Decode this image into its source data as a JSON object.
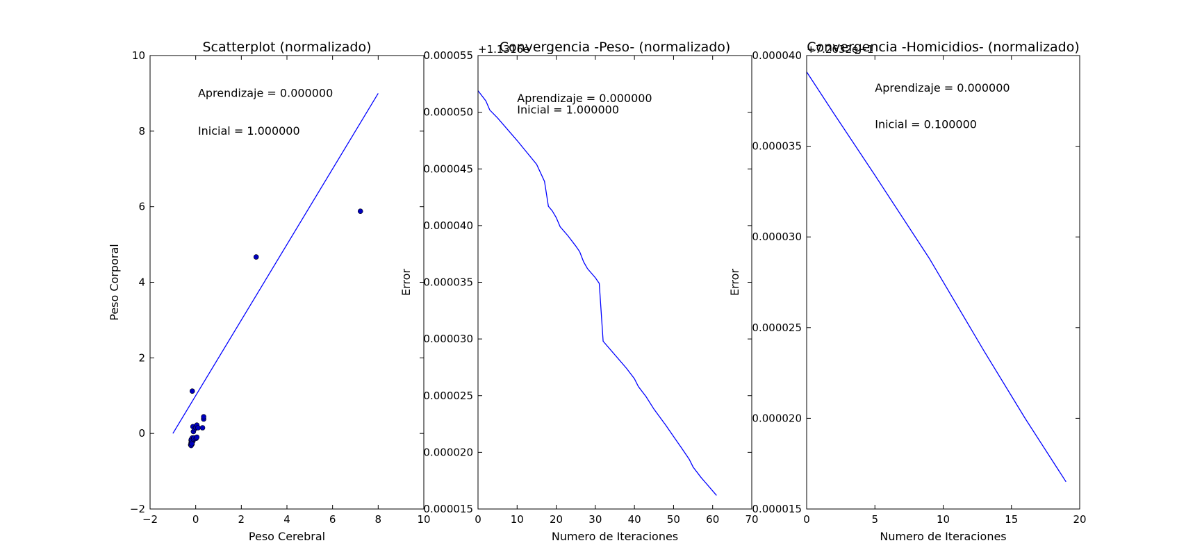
{
  "chart_data": [
    {
      "type": "scatter",
      "title": "Scatterplot (normalizado)",
      "xlabel": "Peso Cerebral",
      "ylabel": "Peso Corporal",
      "xlim": [
        -2,
        10
      ],
      "ylim": [
        -2,
        10
      ],
      "xticks": [
        -2,
        0,
        2,
        4,
        6,
        8,
        10
      ],
      "yticks": [
        -2,
        0,
        2,
        4,
        6,
        8,
        10
      ],
      "xtick_labels": [
        "−2",
        "0",
        "2",
        "4",
        "6",
        "8",
        "10"
      ],
      "ytick_labels": [
        "−2",
        "0",
        "2",
        "4",
        "6",
        "8",
        "10"
      ],
      "annotations": [
        {
          "text": "Aprendizaje = 0.000000",
          "x": 0.1,
          "y": 9.0
        },
        {
          "text": "Inicial = 1.000000",
          "x": 0.1,
          "y": 8.0
        }
      ],
      "line": {
        "x": [
          -1,
          8
        ],
        "y": [
          0,
          9
        ],
        "color": "#0000ff"
      },
      "points": {
        "color": "#0000bf",
        "x": [
          7.22,
          2.65,
          -0.15,
          -0.12,
          -0.1,
          -0.05,
          0.0,
          0.05,
          0.1,
          0.3,
          0.35,
          0.35,
          -0.2,
          -0.15,
          -0.12,
          -0.2,
          -0.18,
          -0.16,
          -0.22,
          -0.2,
          -0.17,
          -0.19,
          -0.1,
          -0.08,
          0.02,
          0.05
        ],
        "y": [
          5.88,
          4.67,
          1.12,
          0.18,
          0.05,
          0.12,
          0.16,
          0.22,
          0.15,
          0.15,
          0.38,
          0.44,
          -0.18,
          -0.12,
          -0.2,
          -0.25,
          -0.22,
          -0.28,
          -0.3,
          -0.32,
          -0.27,
          -0.16,
          -0.15,
          -0.12,
          -0.13,
          -0.1
        ]
      }
    },
    {
      "type": "line",
      "title": "Convergencia -Peso- (normalizado)",
      "xlabel": "Numero de Iteraciones",
      "ylabel": "Error",
      "offset_text": "+1.1316e",
      "xlim": [
        0,
        70
      ],
      "ylim": [
        1.5e-05,
        5.5e-05
      ],
      "xticks": [
        0,
        10,
        20,
        30,
        40,
        50,
        60,
        70
      ],
      "yticks": [
        1.5e-05,
        2e-05,
        2.5e-05,
        3e-05,
        3.5e-05,
        4e-05,
        4.5e-05,
        5e-05,
        5.5e-05
      ],
      "xtick_labels": [
        "0",
        "10",
        "20",
        "30",
        "40",
        "50",
        "60",
        "70"
      ],
      "ytick_labels": [
        "0.000015",
        "0.000020",
        "0.000025",
        "0.000030",
        "0.000035",
        "0.000040",
        "0.000045",
        "0.000050",
        "0.000055"
      ],
      "annotations": [
        {
          "text": "Aprendizaje = 0.000000",
          "x": 10,
          "y": 5.12e-05
        },
        {
          "text": "Inicial = 1.000000",
          "x": 10,
          "y": 5.02e-05
        }
      ],
      "series": [
        {
          "color": "#0000ff",
          "x": [
            0,
            2,
            3,
            5,
            10,
            15,
            17,
            18,
            19,
            20,
            21,
            23,
            25,
            26,
            27,
            28,
            30,
            31,
            32,
            35,
            38,
            40,
            41,
            43,
            45,
            48,
            50,
            52,
            54,
            55,
            57,
            61
          ],
          "y": [
            5.19e-05,
            5.1e-05,
            5.02e-05,
            4.95e-05,
            4.75e-05,
            4.54e-05,
            4.39e-05,
            4.17e-05,
            4.13e-05,
            4.07e-05,
            3.99e-05,
            3.91e-05,
            3.82e-05,
            3.77e-05,
            3.68e-05,
            3.62e-05,
            3.54e-05,
            3.49e-05,
            2.98e-05,
            2.86e-05,
            2.74e-05,
            2.65e-05,
            2.58e-05,
            2.49e-05,
            2.38e-05,
            2.24e-05,
            2.14e-05,
            2.04e-05,
            1.94e-05,
            1.87e-05,
            1.78e-05,
            1.62e-05
          ]
        }
      ]
    },
    {
      "type": "line",
      "title": "Convergencia -Homicidios- (normalizado)",
      "xlabel": "Numero de Iteraciones",
      "ylabel": "Error",
      "offset_text": "+7.2632e−1",
      "xlim": [
        0,
        20
      ],
      "ylim": [
        1.5e-05,
        4e-05
      ],
      "xticks": [
        0,
        5,
        10,
        15,
        20
      ],
      "yticks": [
        1.5e-05,
        2e-05,
        2.5e-05,
        3e-05,
        3.5e-05,
        4e-05
      ],
      "xtick_labels": [
        "0",
        "5",
        "10",
        "15",
        "20"
      ],
      "ytick_labels": [
        "0.000015",
        "0.000020",
        "0.000025",
        "0.000030",
        "0.000035",
        "0.000040"
      ],
      "annotations": [
        {
          "text": "Aprendizaje = 0.000000",
          "x": 5,
          "y": 3.82e-05
        },
        {
          "text": "Inicial = 0.100000",
          "x": 5,
          "y": 3.62e-05
        }
      ],
      "series": [
        {
          "color": "#0000ff",
          "x": [
            0,
            2,
            5,
            9,
            13,
            16,
            19
          ],
          "y": [
            3.91e-05,
            3.68e-05,
            3.34e-05,
            2.88e-05,
            2.37e-05,
            2e-05,
            1.65e-05
          ]
        }
      ]
    }
  ]
}
